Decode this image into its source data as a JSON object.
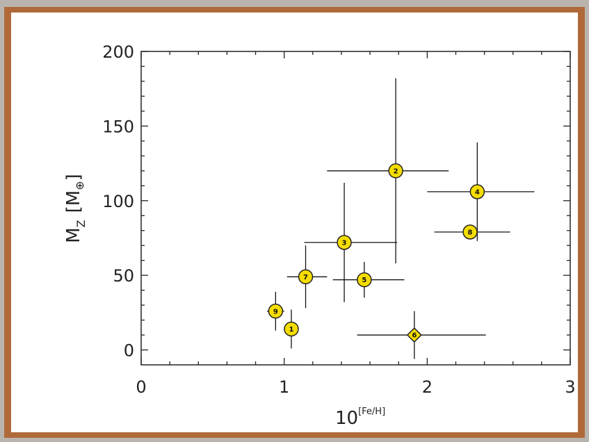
{
  "colors": {
    "frame": "#b06a3a",
    "background_outer": "#b9b4ae",
    "marker_fill": "#f5dd00",
    "marker_stroke": "#222222",
    "axis": "#222222"
  },
  "chart_data": {
    "type": "scatter",
    "title": "",
    "xlabel": "10^[Fe/H]",
    "xlabel_base": "10",
    "xlabel_exponent": "[Fe/H]",
    "ylabel": "M_Z [M_⊕]",
    "ylabel_main": "M",
    "ylabel_sub": "Z",
    "ylabel_unit_open": "[M",
    "ylabel_unit_sub": "⊕",
    "ylabel_unit_close": "]",
    "xlim": [
      0,
      3
    ],
    "ylim": [
      -10,
      200
    ],
    "x_ticks": [
      0,
      1,
      2,
      3
    ],
    "x_tick_labels": [
      "0",
      "1",
      "2",
      "3"
    ],
    "y_ticks": [
      0,
      50,
      100,
      150,
      200
    ],
    "y_tick_labels": [
      "0",
      "50",
      "100",
      "150",
      "200"
    ],
    "grid": false,
    "points": [
      {
        "label": "1",
        "marker": "circle",
        "x": 1.05,
        "y": 14,
        "x_err": [
          0.0,
          0.0
        ],
        "y_err": [
          13,
          13
        ]
      },
      {
        "label": "2",
        "marker": "circle",
        "x": 1.78,
        "y": 120,
        "x_err": [
          0.48,
          0.37
        ],
        "y_err": [
          62,
          62
        ]
      },
      {
        "label": "3",
        "marker": "circle",
        "x": 1.42,
        "y": 72,
        "x_err": [
          0.28,
          0.37
        ],
        "y_err": [
          40,
          40
        ]
      },
      {
        "label": "4",
        "marker": "circle",
        "x": 2.35,
        "y": 106,
        "x_err": [
          0.35,
          0.4
        ],
        "y_err": [
          33,
          33
        ]
      },
      {
        "label": "5",
        "marker": "circle",
        "x": 1.56,
        "y": 47,
        "x_err": [
          0.22,
          0.28
        ],
        "y_err": [
          12,
          12
        ]
      },
      {
        "label": "6",
        "marker": "diamond",
        "x": 1.91,
        "y": 10,
        "x_err": [
          0.4,
          0.5
        ],
        "y_err": [
          16,
          16
        ]
      },
      {
        "label": "7",
        "marker": "circle",
        "x": 1.15,
        "y": 49,
        "x_err": [
          0.13,
          0.15
        ],
        "y_err": [
          21,
          21
        ]
      },
      {
        "label": "8",
        "marker": "circle",
        "x": 2.3,
        "y": 79,
        "x_err": [
          0.25,
          0.28
        ],
        "y_err": [
          5,
          5
        ]
      },
      {
        "label": "9",
        "marker": "circle",
        "x": 0.94,
        "y": 26,
        "x_err": [
          0.06,
          0.06
        ],
        "y_err": [
          13,
          13
        ]
      }
    ]
  }
}
